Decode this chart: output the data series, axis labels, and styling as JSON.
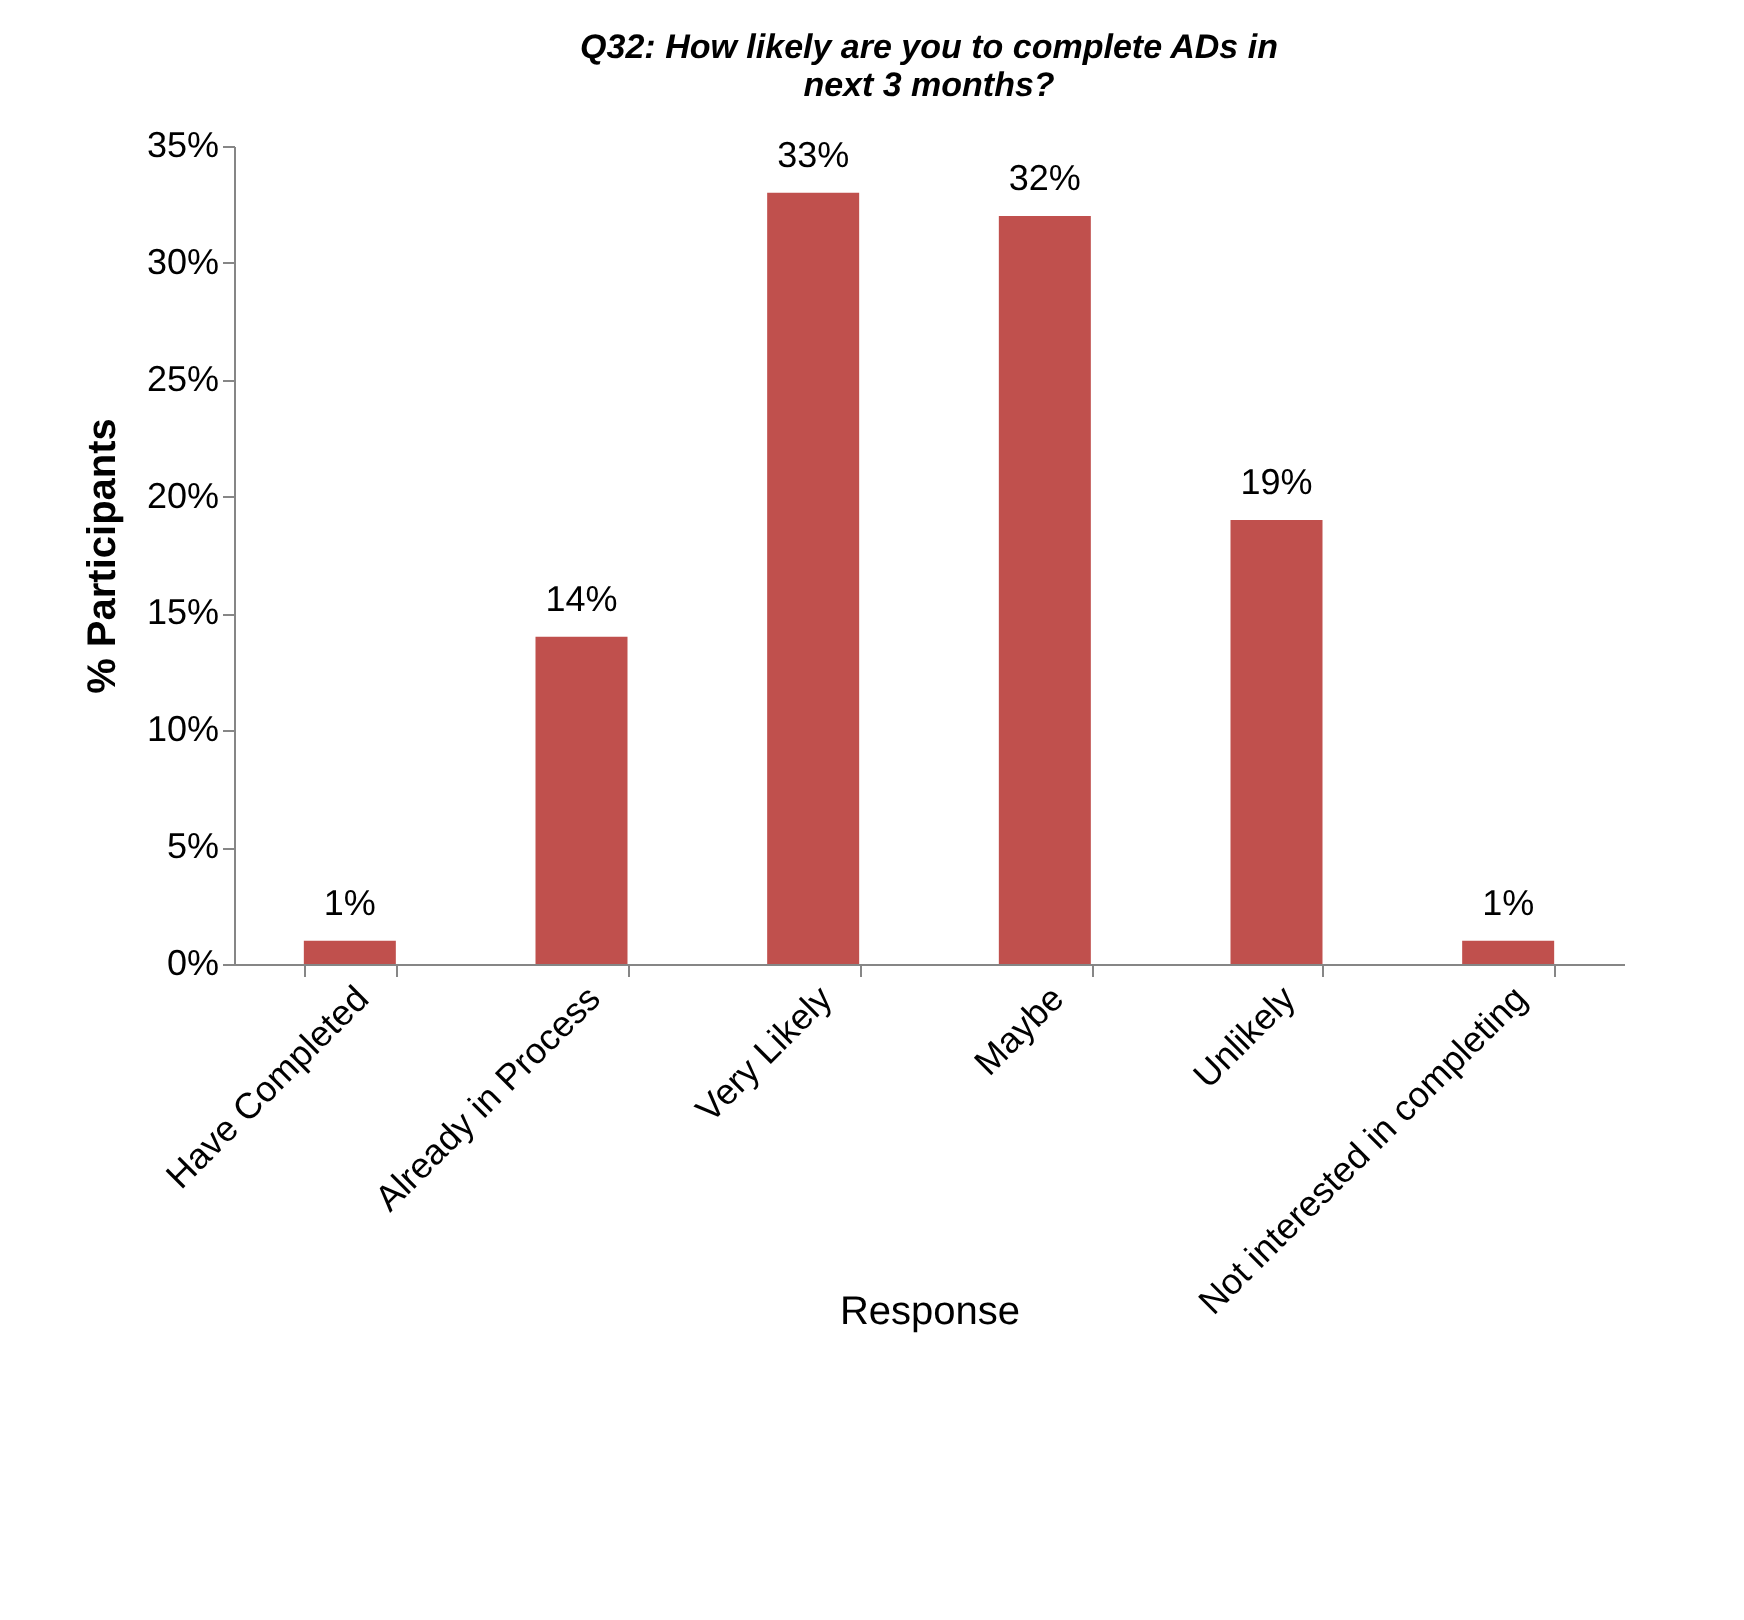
{
  "chart_data": {
    "type": "bar",
    "title": "Q32: How likely are you to complete ADs in next 3 months?",
    "xlabel": "Response",
    "ylabel": "% Participants",
    "categories": [
      "Have Completed",
      "Already in Process",
      "Very Likely",
      "Maybe",
      "Unlikely",
      "Not interested in completing"
    ],
    "values": [
      1,
      14,
      33,
      32,
      19,
      1
    ],
    "value_labels": [
      "1%",
      "14%",
      "33%",
      "32%",
      "19%",
      "1%"
    ],
    "color": "#c0504d",
    "ylim": [
      0,
      35
    ],
    "yticks": [
      {
        "value": 0,
        "label": "0%"
      },
      {
        "value": 5,
        "label": "5%"
      },
      {
        "value": 10,
        "label": "10%"
      },
      {
        "value": 15,
        "label": "15%"
      },
      {
        "value": 20,
        "label": "20%"
      },
      {
        "value": 25,
        "label": "25%"
      },
      {
        "value": 30,
        "label": "30%"
      },
      {
        "value": 35,
        "label": "35%"
      }
    ],
    "grid": false
  }
}
